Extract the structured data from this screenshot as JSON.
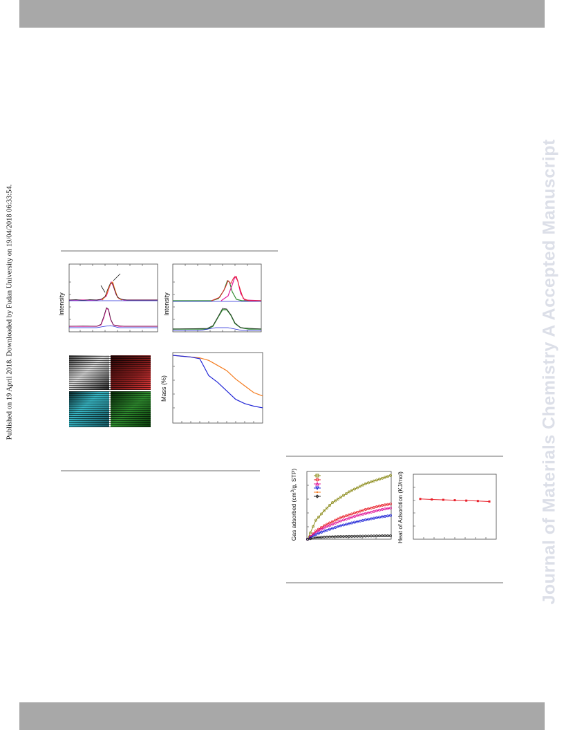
{
  "watermark": {
    "journal": "Journal of Materials Chemistry A Accepted Manuscript",
    "published": "Published on 19 April 2018. Downloaded by Fudan University on 19/04/2018 06:33:54."
  },
  "figure1": {
    "panel_a_ylabel": "Intensity",
    "panel_b_ylabel": "Intensity",
    "panel_d_ylabel": "Mass (%)"
  },
  "figure2": {
    "left_ylabel_pre": "Gas adsorbed (cm",
    "left_ylabel_sup": "3",
    "left_ylabel_post": "/g, STP)",
    "right_ylabel": "Heat of  Adsorbtion (KJ/mol)"
  },
  "colors": {
    "bars": "#a8a8a8",
    "olive": "#8b8b1a",
    "red": "#e8202a",
    "magenta": "#e0189a",
    "blue": "#1f24d6",
    "orange": "#f47a1c",
    "green": "#2f8a2f",
    "black": "#222222"
  },
  "chart_data": [
    {
      "type": "line",
      "title": "",
      "xlabel": "",
      "ylabel": "Gas adsorbed (cm3/g, STP)",
      "x": [
        0.0,
        0.1,
        0.2,
        0.3,
        0.4,
        0.5,
        0.6,
        0.7,
        0.8,
        0.9,
        1.0
      ],
      "series": [
        {
          "values": [
            0,
            14,
            21,
            27,
            31,
            35,
            38,
            41,
            43,
            45,
            47
          ]
        },
        {
          "values": [
            0,
            6,
            10,
            13,
            16,
            18,
            20,
            22,
            23.5,
            25,
            26
          ]
        },
        {
          "values": [
            0,
            5,
            8.5,
            11,
            13.5,
            15.5,
            17.5,
            19,
            20.5,
            22,
            23
          ]
        },
        {
          "values": [
            0,
            3.5,
            6,
            8,
            10,
            11.5,
            13,
            14.3,
            15.5,
            16.6,
            17.5
          ]
        },
        {
          "values": [
            0,
            1.2,
            1.6,
            1.8,
            2.0,
            2.1,
            2.2,
            2.3,
            2.4,
            2.5,
            2.5
          ]
        }
      ],
      "ylim": [
        0,
        50
      ]
    },
    {
      "type": "line",
      "title": "",
      "xlabel": "",
      "ylabel": "Heat of  Adsorbtion (KJ/mol)",
      "x": [
        1,
        2,
        3,
        4,
        5,
        6,
        7
      ],
      "series": [
        {
          "values": [
            31,
            30.6,
            30.3,
            30.0,
            29.7,
            29.4,
            29.0
          ]
        }
      ],
      "ylim": [
        0,
        50
      ]
    },
    {
      "type": "line",
      "title": "",
      "xlabel": "",
      "ylabel": "Mass (%)",
      "x": [
        0,
        1,
        2,
        3,
        4,
        5,
        6,
        7,
        8,
        9,
        10
      ],
      "series": [
        {
          "values": [
            100,
            99,
            98,
            97,
            94,
            88,
            82,
            72,
            64,
            56,
            52
          ]
        },
        {
          "values": [
            100,
            99,
            98,
            96,
            76,
            68,
            58,
            48,
            43,
            40,
            38
          ]
        }
      ],
      "ylim": [
        20,
        100
      ]
    }
  ]
}
